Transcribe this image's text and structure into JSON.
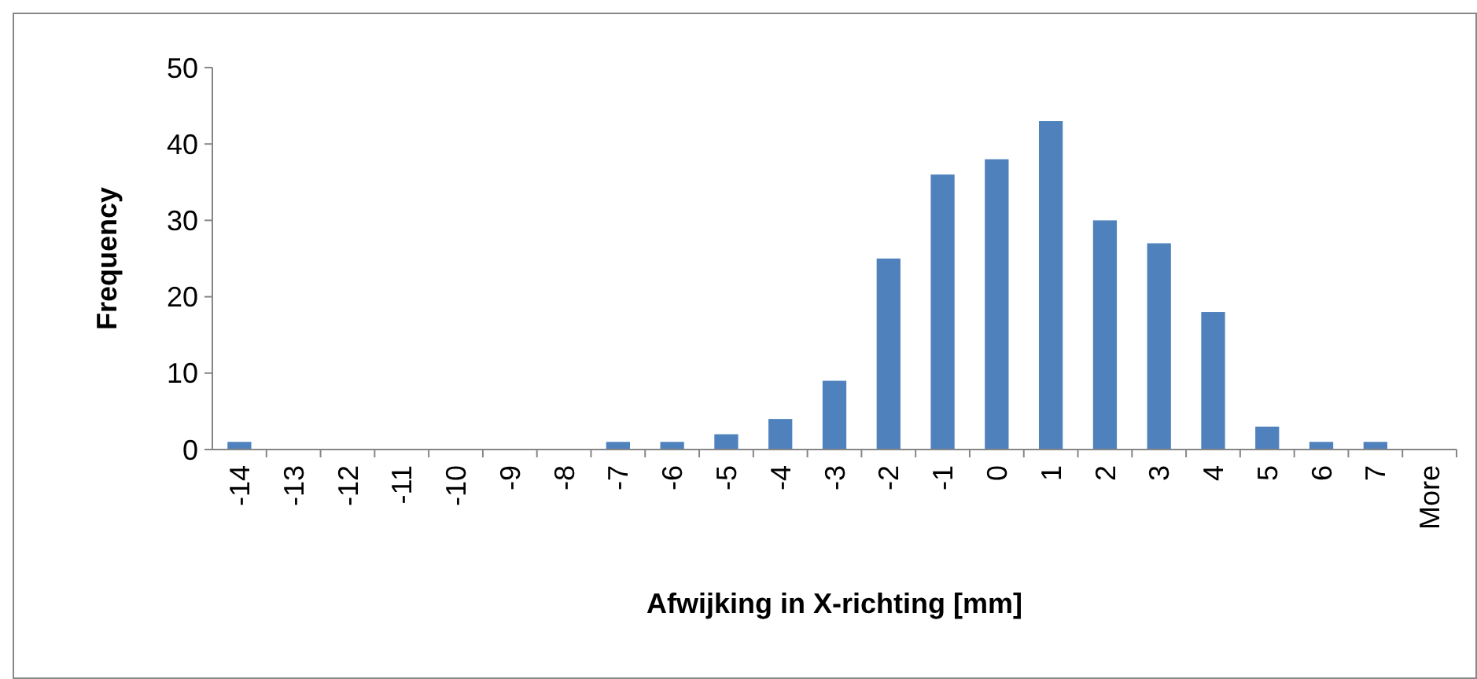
{
  "chart_data": {
    "type": "bar",
    "xlabel": "Afwijking in X-richting [mm]",
    "ylabel": "Frequency",
    "categories": [
      "-14",
      "-13",
      "-12",
      "-11",
      "-10",
      "-9",
      "-8",
      "-7",
      "-6",
      "-5",
      "-4",
      "-3",
      "-2",
      "-1",
      "0",
      "1",
      "2",
      "3",
      "4",
      "5",
      "6",
      "7",
      "More"
    ],
    "values": [
      1,
      0,
      0,
      0,
      0,
      0,
      0,
      1,
      1,
      2,
      4,
      9,
      25,
      36,
      38,
      43,
      30,
      27,
      18,
      3,
      1,
      1,
      0
    ],
    "color": "#4f81bd",
    "ylim": [
      0,
      50
    ],
    "yticks": [
      0,
      10,
      20,
      30,
      40,
      50
    ],
    "grid": false
  }
}
